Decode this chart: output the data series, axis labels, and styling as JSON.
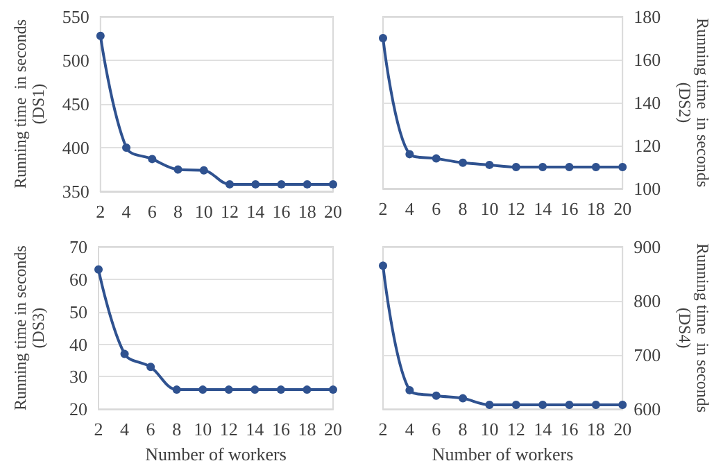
{
  "chart_data": [
    {
      "type": "line",
      "categories": [
        "2",
        "4",
        "6",
        "8",
        "10",
        "12",
        "14",
        "16",
        "18",
        "20"
      ],
      "ylabel": "Running time  in seconds (DS1)",
      "ylim": [
        350,
        550
      ],
      "yticks": [
        350,
        400,
        450,
        500,
        550
      ],
      "grid": "y",
      "marker": "circle",
      "line_style": "solid",
      "series": [
        {
          "color": "#2f5290",
          "values": [
            528,
            400,
            387,
            375,
            374,
            358,
            358,
            358,
            358,
            358
          ]
        }
      ]
    },
    {
      "type": "line",
      "categories": [
        "2",
        "4",
        "6",
        "8",
        "10",
        "12",
        "14",
        "16",
        "18",
        "20"
      ],
      "y2label": "Running time  in seconds (DS2)",
      "y2lim": [
        100,
        180
      ],
      "y2ticks": [
        100,
        120,
        140,
        160,
        180
      ],
      "grid": "y",
      "marker": "circle",
      "line_style": "solid",
      "series": [
        {
          "color": "#2f5290",
          "axis": "y2",
          "values": [
            170,
            116,
            114,
            112,
            111,
            110,
            110,
            110,
            110,
            110
          ]
        }
      ]
    },
    {
      "type": "line",
      "categories": [
        "2",
        "4",
        "6",
        "8",
        "10",
        "12",
        "14",
        "16",
        "18",
        "20"
      ],
      "xlabel": "Number of workers",
      "ylabel": "Running time in seconds (DS3)",
      "ylim": [
        20,
        70
      ],
      "yticks": [
        20,
        30,
        40,
        50,
        60,
        70
      ],
      "grid": "y",
      "marker": "circle",
      "line_style": "solid",
      "series": [
        {
          "color": "#2f5290",
          "values": [
            63,
            37,
            33,
            26,
            26,
            26,
            26,
            26,
            26,
            26
          ]
        }
      ]
    },
    {
      "type": "line",
      "categories": [
        "2",
        "4",
        "6",
        "8",
        "10",
        "12",
        "14",
        "16",
        "18",
        "20"
      ],
      "xlabel": "Number of workers",
      "y2label": "Running time  in seconds (DS4)",
      "y2lim": [
        600,
        900
      ],
      "y2ticks": [
        600,
        700,
        800,
        900
      ],
      "grid": "y",
      "marker": "circle",
      "line_style": "solid",
      "series": [
        {
          "color": "#2f5290",
          "axis": "y2",
          "values": [
            865,
            635,
            625,
            620,
            608,
            608,
            608,
            608,
            608,
            608
          ]
        }
      ]
    }
  ]
}
